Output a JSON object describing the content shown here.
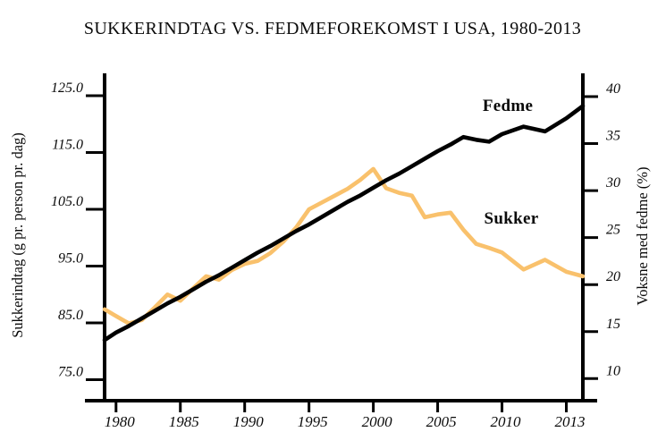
{
  "chart_data": {
    "type": "line",
    "title": "SUKKERINDTAG VS. FEDMEFOREKOMST I USA, 1980-2013",
    "background_color": "#ffffff",
    "grid": false,
    "legend_position": "inline-labels",
    "x_axis": {
      "tick_labels": [
        "1980",
        "1985",
        "1990",
        "1995",
        "2000",
        "2005",
        "2010",
        "2013"
      ]
    },
    "left_axis": {
      "label": "Sukkerindtag (g pr. person pr. dag)",
      "tick_labels": [
        "125.0",
        "115.0",
        "105.0",
        "95.0",
        "85.0",
        "75.0"
      ],
      "tick_values": [
        125,
        115,
        105,
        95,
        85,
        75
      ],
      "range": [
        75,
        125
      ]
    },
    "right_axis": {
      "label": "Voksne med fedme (%)",
      "tick_labels": [
        "40",
        "35",
        "30",
        "25",
        "20",
        "15",
        "10"
      ],
      "tick_values": [
        40,
        35,
        30,
        25,
        20,
        15,
        10
      ],
      "range": [
        10,
        40
      ]
    },
    "series": [
      {
        "name": "Sukker",
        "axis": "left",
        "color": "#F9C16C",
        "points": [
          [
            1979,
            87.4
          ],
          [
            1980,
            86.2
          ],
          [
            1981,
            84.9
          ],
          [
            1982,
            85.5
          ],
          [
            1983,
            87.7
          ],
          [
            1984,
            90.0
          ],
          [
            1985,
            88.9
          ],
          [
            1986,
            91.1
          ],
          [
            1987,
            93.2
          ],
          [
            1988,
            92.6
          ],
          [
            1989,
            94.3
          ],
          [
            1990,
            95.4
          ],
          [
            1991,
            95.9
          ],
          [
            1992,
            97.3
          ],
          [
            1993,
            99.3
          ],
          [
            1994,
            101.8
          ],
          [
            1995,
            105.0
          ],
          [
            1996,
            106.2
          ],
          [
            1997,
            107.4
          ],
          [
            1998,
            108.6
          ],
          [
            1999,
            110.2
          ],
          [
            2000,
            112.1
          ],
          [
            2001,
            108.7
          ],
          [
            2002,
            107.9
          ],
          [
            2003,
            107.4
          ],
          [
            2004,
            103.6
          ],
          [
            2005,
            104.1
          ],
          [
            2006,
            104.4
          ],
          [
            2007,
            101.4
          ],
          [
            2008,
            98.9
          ],
          [
            2009,
            98.2
          ],
          [
            2010,
            97.4
          ],
          [
            2011,
            94.4
          ],
          [
            2012,
            96.1
          ],
          [
            2013,
            94.0
          ],
          [
            2014,
            93.2
          ]
        ]
      },
      {
        "name": "Fedme",
        "axis": "right",
        "color": "#000000",
        "points": [
          [
            1979,
            14.1
          ],
          [
            1980,
            14.9
          ],
          [
            1981,
            15.6
          ],
          [
            1982,
            16.4
          ],
          [
            1983,
            17.2
          ],
          [
            1984,
            18.0
          ],
          [
            1985,
            18.7
          ],
          [
            1986,
            19.5
          ],
          [
            1987,
            20.3
          ],
          [
            1988,
            21.0
          ],
          [
            1989,
            21.8
          ],
          [
            1990,
            22.6
          ],
          [
            1991,
            23.4
          ],
          [
            1992,
            24.1
          ],
          [
            1993,
            24.9
          ],
          [
            1994,
            25.7
          ],
          [
            1995,
            26.4
          ],
          [
            1996,
            27.2
          ],
          [
            1997,
            28.0
          ],
          [
            1998,
            28.8
          ],
          [
            1999,
            29.5
          ],
          [
            2000,
            30.3
          ],
          [
            2001,
            31.1
          ],
          [
            2002,
            31.8
          ],
          [
            2003,
            32.6
          ],
          [
            2004,
            33.4
          ],
          [
            2005,
            34.2
          ],
          [
            2006,
            34.9
          ],
          [
            2007,
            35.7
          ],
          [
            2008,
            35.4
          ],
          [
            2009,
            35.2
          ],
          [
            2010,
            36.0
          ],
          [
            2011,
            36.8
          ],
          [
            2012,
            36.3
          ],
          [
            2013,
            37.7
          ],
          [
            2014,
            39.0
          ]
        ]
      }
    ]
  }
}
